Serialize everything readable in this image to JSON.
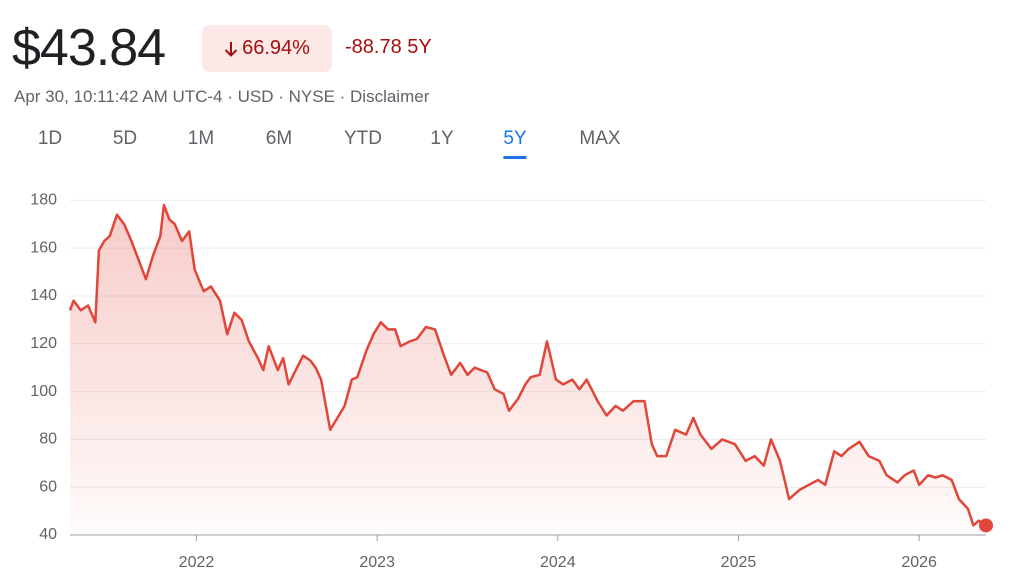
{
  "header": {
    "price": "$43.84",
    "change_percent": "66.94%",
    "change": "-88.78 5Y",
    "meta": "Apr 30, 10:11:42 AM UTC-4 · USD · NYSE · Disclaimer"
  },
  "tabs": [
    "1D",
    "5D",
    "1M",
    "6M",
    "YTD",
    "1Y",
    "5Y",
    "MAX"
  ],
  "active_tab": 6,
  "chart_data": {
    "type": "line",
    "color": "#e0463a",
    "grid": true,
    "x": [
      2021.3,
      2021.32,
      2021.36,
      2021.4,
      2021.44,
      2021.46,
      2021.49,
      2021.52,
      2021.56,
      2021.6,
      2021.64,
      2021.68,
      2021.72,
      2021.76,
      2021.8,
      2021.82,
      2021.85,
      2021.88,
      2021.92,
      2021.96,
      2021.99,
      2022.04,
      2022.08,
      2022.13,
      2022.17,
      2022.21,
      2022.25,
      2022.29,
      2022.34,
      2022.37,
      2022.4,
      2022.45,
      2022.48,
      2022.51,
      2022.55,
      2022.59,
      2022.63,
      2022.66,
      2022.69,
      2022.74,
      2022.78,
      2022.82,
      2022.86,
      2022.89,
      2022.94,
      2022.98,
      2023.02,
      2023.06,
      2023.1,
      2023.13,
      2023.18,
      2023.22,
      2023.27,
      2023.32,
      2023.37,
      2023.41,
      2023.46,
      2023.5,
      2023.54,
      2023.61,
      2023.65,
      2023.7,
      2023.73,
      2023.78,
      2023.82,
      2023.85,
      2023.9,
      2023.94,
      2023.99,
      2024.03,
      2024.08,
      2024.12,
      2024.16,
      2024.22,
      2024.27,
      2024.32,
      2024.36,
      2024.42,
      2024.48,
      2024.52,
      2024.55,
      2024.6,
      2024.65,
      2024.71,
      2024.75,
      2024.79,
      2024.85,
      2024.91,
      2024.98,
      2025.04,
      2025.09,
      2025.14,
      2025.18,
      2025.23,
      2025.28,
      2025.34,
      2025.39,
      2025.44,
      2025.48,
      2025.53,
      2025.57,
      2025.61,
      2025.67,
      2025.72,
      2025.78,
      2025.82,
      2025.88,
      2025.92,
      2025.97,
      2026.0,
      2026.05,
      2026.09,
      2026.13,
      2026.18,
      2026.22,
      2026.27,
      2026.3,
      2026.33,
      2026.37
    ],
    "values": [
      134,
      138,
      134,
      136,
      129,
      159,
      163,
      165,
      174,
      170,
      163,
      155,
      147,
      157,
      165,
      178,
      172,
      170,
      163,
      167,
      151,
      142,
      144,
      138,
      124,
      133,
      130,
      121,
      114,
      109,
      119,
      109,
      114,
      103,
      109,
      115,
      113,
      110,
      105,
      84,
      89,
      94,
      105,
      106,
      117,
      124,
      129,
      126,
      126,
      119,
      121,
      122,
      127,
      126,
      115,
      107,
      112,
      107,
      110,
      108,
      101,
      99,
      92,
      97,
      103,
      106,
      107,
      121,
      105,
      103,
      105,
      101,
      105,
      96,
      90,
      94,
      92,
      96,
      96,
      78,
      73,
      73,
      84,
      82,
      89,
      82,
      76,
      80,
      78,
      71,
      73,
      69,
      80,
      71,
      55,
      59,
      61,
      63,
      61,
      75,
      73,
      76,
      79,
      73,
      71,
      65,
      62,
      65,
      67,
      61,
      65,
      64,
      65,
      63,
      55,
      51,
      44,
      46,
      44
    ],
    "xlim": [
      2021.3,
      2026.37
    ],
    "xticks": [
      2022,
      2023,
      2024,
      2025,
      2026
    ],
    "ylim": [
      40,
      186
    ],
    "yticks": [
      40,
      60,
      80,
      100,
      120,
      140,
      160,
      180
    ]
  }
}
